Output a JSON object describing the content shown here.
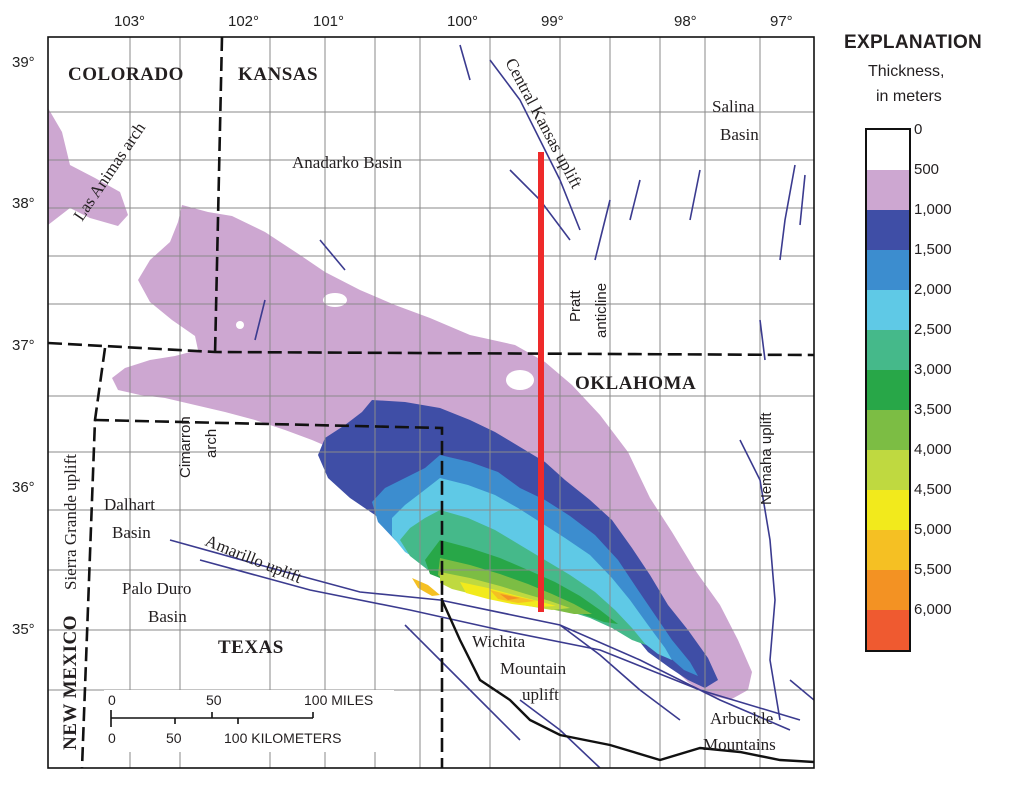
{
  "longitude_labels": [
    "103°",
    "102°",
    "101°",
    "100°",
    "99°",
    "98°",
    "97°"
  ],
  "latitude_labels": [
    "39°",
    "38°",
    "37°",
    "36°",
    "35°"
  ],
  "states": {
    "colorado": "COLORADO",
    "kansas": "KANSAS",
    "oklahoma": "OKLAHOMA",
    "texas": "TEXAS",
    "new_mexico": "NEW MEXICO"
  },
  "features": {
    "las_animas_arch": "Las Animas arch",
    "anadarko_basin": "Anadarko Basin",
    "central_kansas_uplift": "Central Kansas uplift",
    "salina_basin_1": "Salina",
    "salina_basin_2": "Basin",
    "pratt_1": "Pratt",
    "pratt_2": "anticline",
    "cimarron_1": "Cimarron",
    "cimarron_2": "arch",
    "sierra_grande": "Sierra Grande uplift",
    "dalhart_1": "Dalhart",
    "dalhart_2": "Basin",
    "amarillo_uplift": "Amarillo uplift",
    "palo_duro_1": "Palo Duro",
    "palo_duro_2": "Basin",
    "wichita_1": "Wichita",
    "wichita_2": "Mountain",
    "wichita_3": "uplift",
    "nemaha_uplift": "Nemaha uplift",
    "arbuckle_1": "Arbuckle",
    "arbuckle_2": "Mountains"
  },
  "scale_bar": {
    "miles_ticks": [
      "0",
      "50",
      "100 MILES"
    ],
    "km_ticks": [
      "0",
      "50",
      "100 KILOMETERS"
    ]
  },
  "legend": {
    "title": "EXPLANATION",
    "subtitle_1": "Thickness,",
    "subtitle_2": "in meters",
    "classes": [
      {
        "label": "0",
        "color": "#ffffff"
      },
      {
        "label": "500",
        "color": "#cda7d1"
      },
      {
        "label": "1,000",
        "color": "#3f4ea6"
      },
      {
        "label": "1,500",
        "color": "#3c8dcf"
      },
      {
        "label": "2,000",
        "color": "#5fc9e6"
      },
      {
        "label": "2,500",
        "color": "#45b98a"
      },
      {
        "label": "3,000",
        "color": "#28a748"
      },
      {
        "label": "3,500",
        "color": "#7cbd44"
      },
      {
        "label": "4,000",
        "color": "#bfd940"
      },
      {
        "label": "4,500",
        "color": "#f2ea1c"
      },
      {
        "label": "5,000",
        "color": "#f5c023"
      },
      {
        "label": "5,500",
        "color": "#f39223"
      },
      {
        "label": "6,000",
        "color": "#ef5a30"
      }
    ]
  },
  "colors": {
    "cross_section_line": "#ee2a2a",
    "fault_lines": "#3b3b8f",
    "county_lines": "#8a8a8a"
  }
}
